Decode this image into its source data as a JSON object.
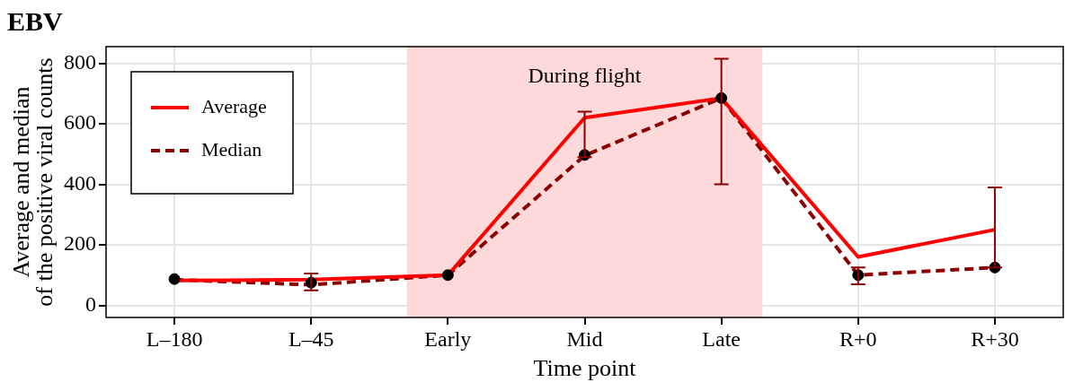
{
  "chart_data": {
    "type": "line",
    "title": "EBV",
    "xlabel": "Time point",
    "ylabel": "Average and median\nof the positive viral counts",
    "categories": [
      "L–180",
      "L–45",
      "Early",
      "Mid",
      "Late",
      "R+0",
      "R+30"
    ],
    "ylim": [
      -40,
      855
    ],
    "yticks": [
      0,
      200,
      400,
      600,
      800
    ],
    "grid": true,
    "legend": "top left",
    "series": [
      {
        "name": "Average",
        "color": "#ff0000",
        "values": [
          82,
          85,
          100,
          620,
          685,
          160,
          250
        ],
        "line_style": "solid",
        "marker": "none"
      },
      {
        "name": "Median",
        "color": "#8b0000",
        "values": [
          85,
          68,
          100,
          495,
          685,
          100,
          125
        ],
        "line_style": "dashed",
        "marker": "none"
      },
      {
        "type": "scatter",
        "color": "#000000",
        "marker": "circle",
        "values": [
          87,
          75,
          100,
          497,
          685,
          100,
          125
        ],
        "errors": [
          null,
          [
            50,
            105
          ],
          null,
          [
            490,
            640
          ],
          [
            400,
            815
          ],
          [
            70,
            125
          ],
          [
            125,
            390
          ]
        ]
      }
    ],
    "bands": [
      {
        "axis": "x",
        "from": "Early",
        "to": "Late",
        "label": "During flight",
        "color": "#fdd9da"
      }
    ]
  }
}
